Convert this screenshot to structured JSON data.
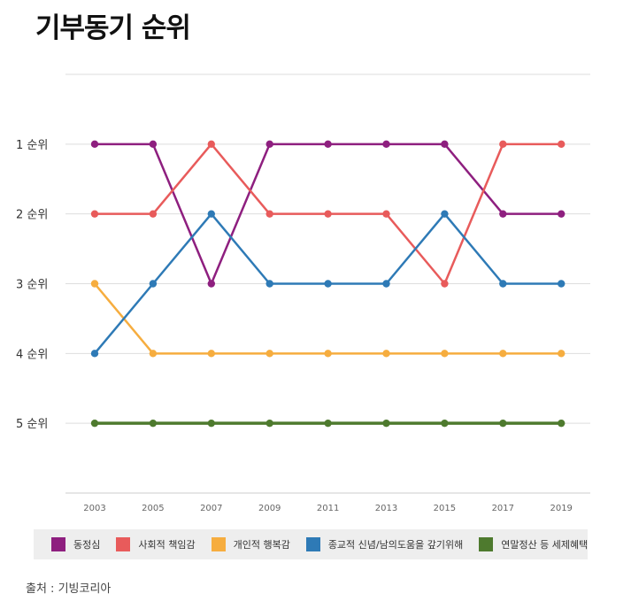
{
  "chart_data": {
    "type": "line",
    "title": "기부동기 순위",
    "x": [
      "2003",
      "2005",
      "2007",
      "2009",
      "2011",
      "2013",
      "2015",
      "2017",
      "2019"
    ],
    "y_tick_labels": [
      "1 순위",
      "2 순위",
      "3 순위",
      "4 순위",
      "5 순위"
    ],
    "ylim": [
      0,
      6
    ],
    "y_inverted": true,
    "grid": true,
    "legend_position": "bottom",
    "series": [
      {
        "name": "동정심",
        "color": "#8e1f7f",
        "values": [
          1,
          1,
          3,
          1,
          1,
          1,
          1,
          2,
          2
        ]
      },
      {
        "name": "사회적 책임감",
        "color": "#e85b5b",
        "values": [
          2,
          2,
          1,
          2,
          2,
          2,
          3,
          1,
          1
        ]
      },
      {
        "name": "개인적 행복감",
        "color": "#f6ad3f",
        "values": [
          3,
          4,
          4,
          4,
          4,
          4,
          4,
          4,
          4
        ]
      },
      {
        "name": "종교적 신념/남의도움을 갚기위해",
        "color": "#2e7ab6",
        "values": [
          4,
          3,
          2,
          3,
          3,
          3,
          2,
          3,
          3
        ]
      },
      {
        "name": "연말정산 등 세제혜택",
        "color": "#4e7a2e",
        "values": [
          5,
          5,
          5,
          5,
          5,
          5,
          5,
          5,
          5
        ]
      }
    ]
  },
  "source": "출처 : 기빙코리아"
}
